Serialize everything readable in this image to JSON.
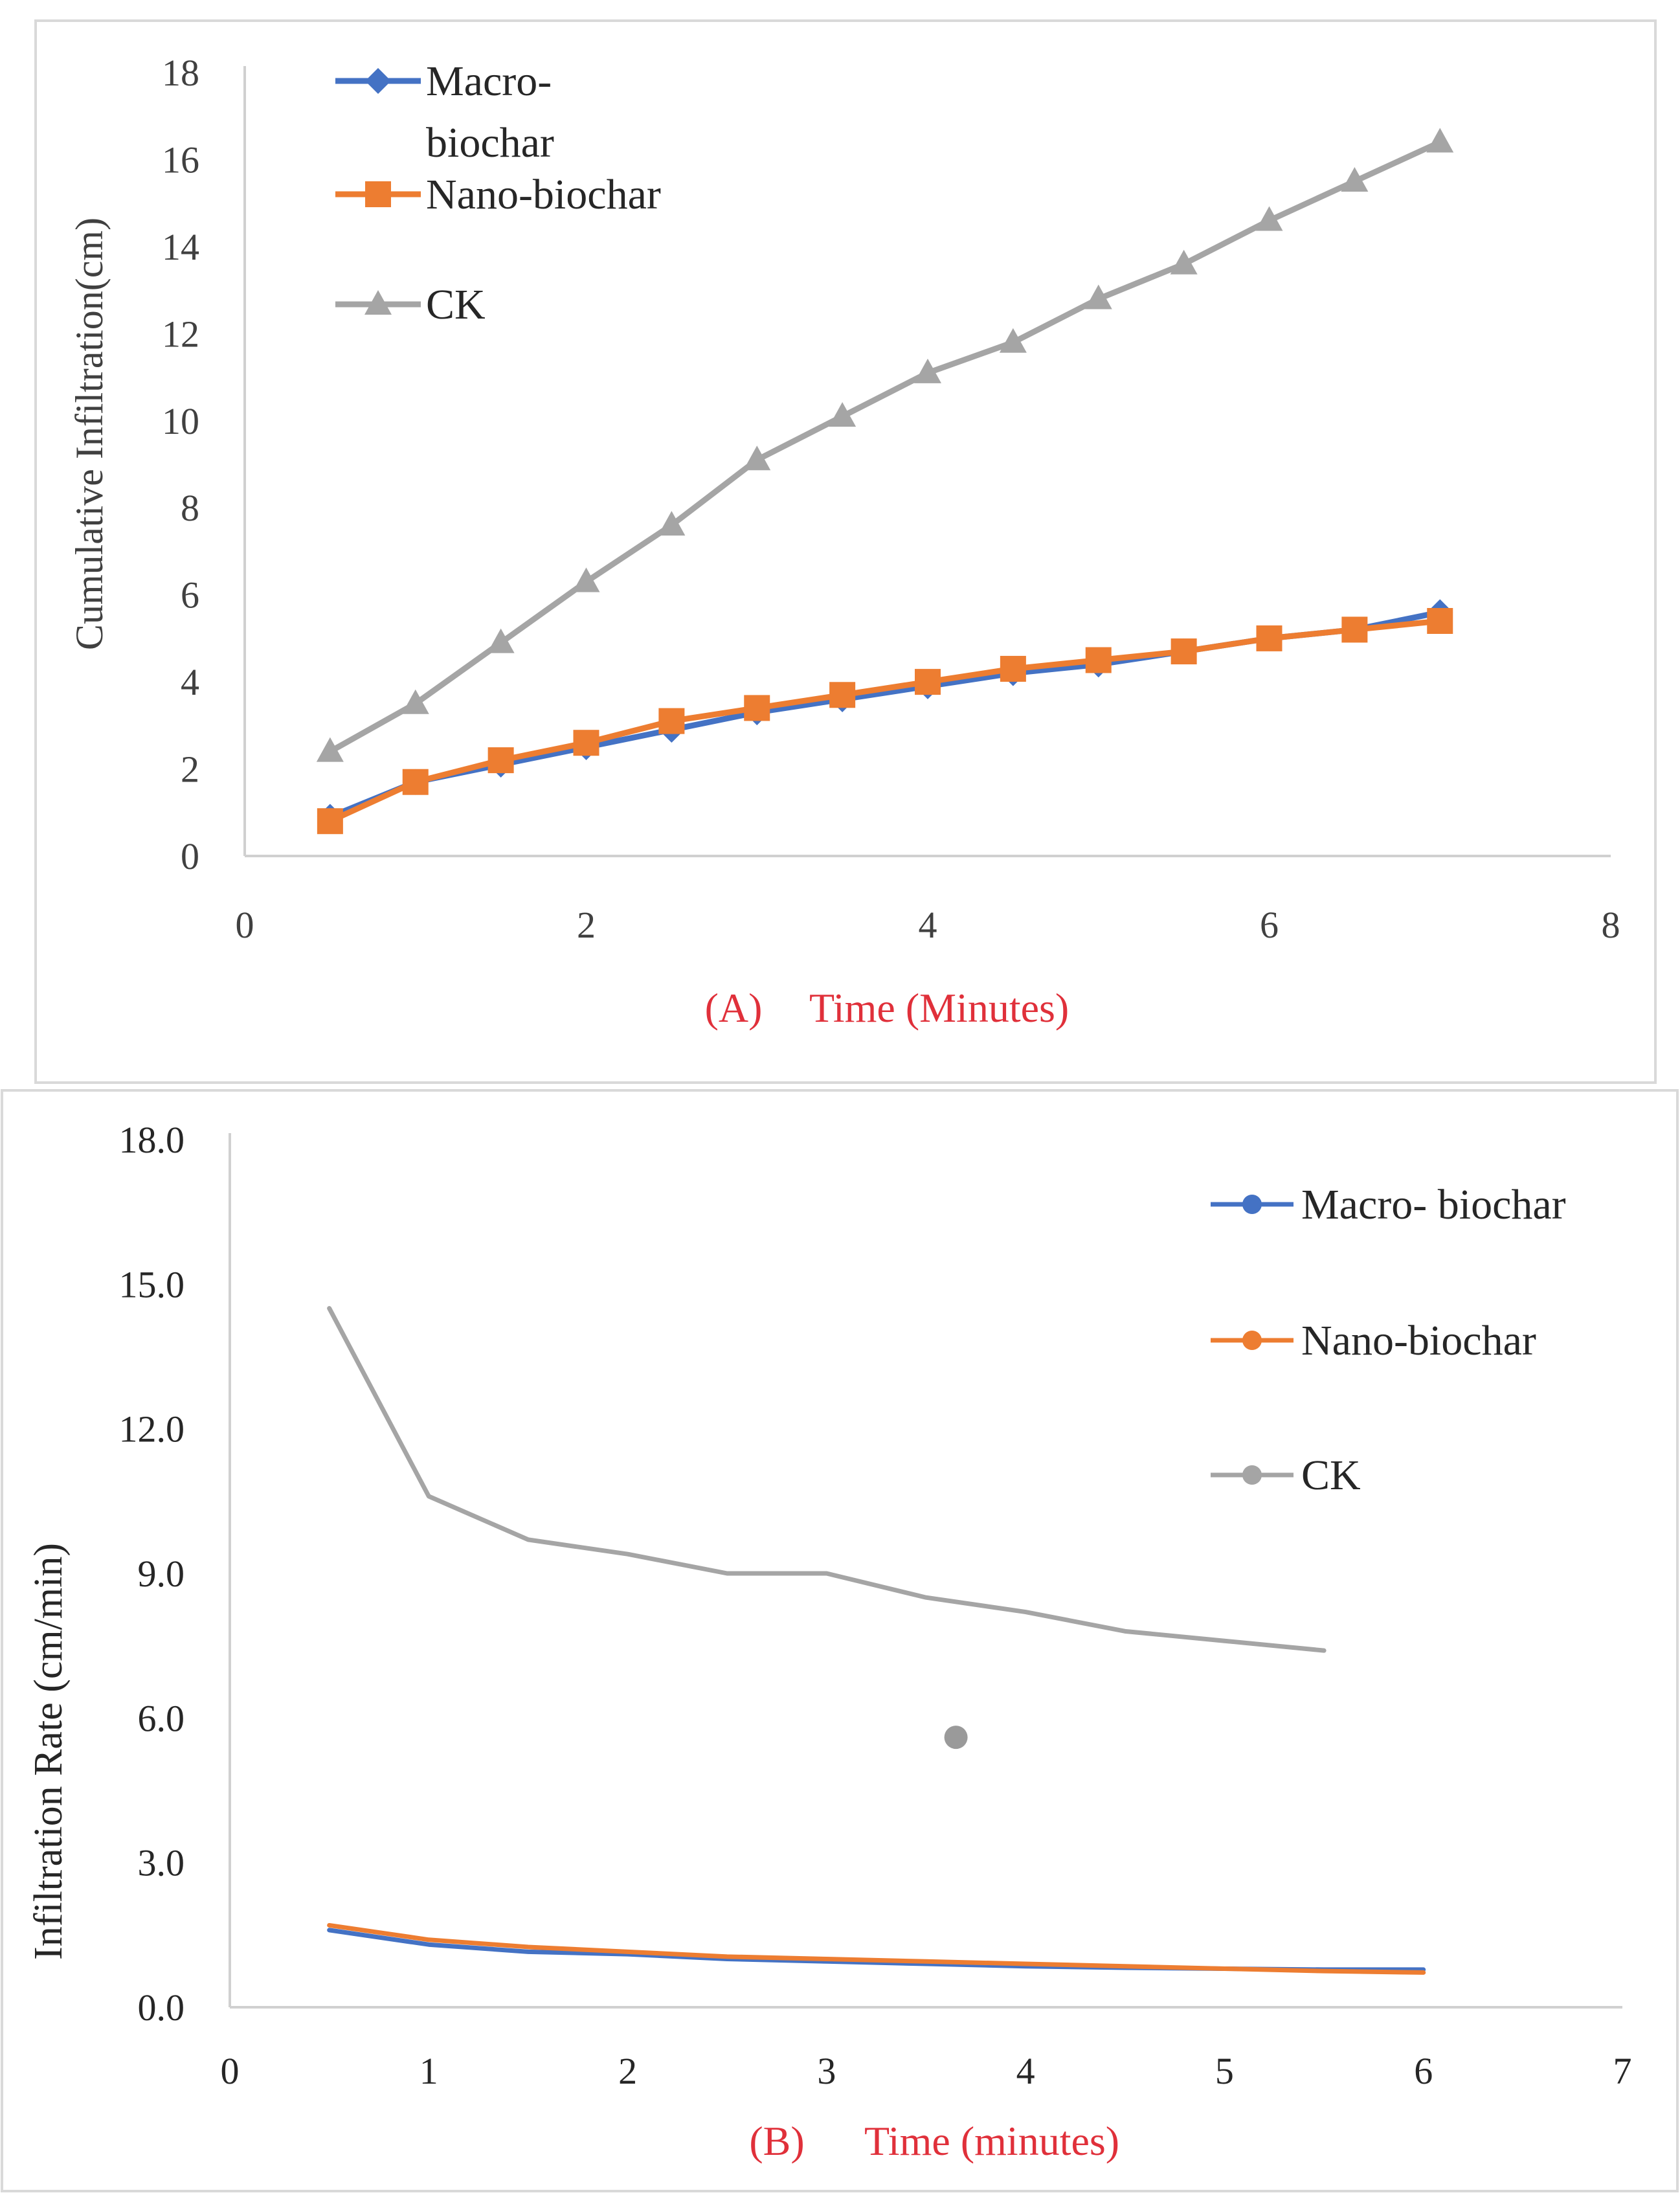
{
  "chart_data": [
    {
      "type": "line",
      "panel_label": "(A)",
      "title": "",
      "xlabel": "Time (Minutes)",
      "ylabel": "Cumulative Infiltration(cm)",
      "xlim": [
        0,
        8
      ],
      "ylim": [
        0,
        18
      ],
      "x_ticks": [
        0,
        2,
        4,
        6,
        8
      ],
      "y_ticks": [
        0,
        2,
        4,
        6,
        8,
        10,
        12,
        14,
        16,
        18
      ],
      "legend_position": "top-left",
      "grid": false,
      "x": [
        0.5,
        1,
        1.5,
        2,
        2.5,
        3,
        3.5,
        4,
        4.5,
        5,
        5.5,
        6,
        6.5,
        7
      ],
      "series": [
        {
          "name": "Macro-biochar",
          "legend_lines": [
            "Macro-",
            "biochar"
          ],
          "color": "#4472C4",
          "marker": "diamond",
          "values": [
            0.9,
            1.7,
            2.1,
            2.5,
            2.9,
            3.3,
            3.6,
            3.9,
            4.2,
            4.4,
            4.7,
            5.0,
            5.2,
            5.6
          ]
        },
        {
          "name": "Nano-biochar",
          "legend_lines": [
            "Nano-biochar"
          ],
          "color": "#ED7D31",
          "marker": "square",
          "values": [
            0.8,
            1.7,
            2.2,
            2.6,
            3.1,
            3.4,
            3.7,
            4.0,
            4.3,
            4.5,
            4.7,
            5.0,
            5.2,
            5.4
          ]
        },
        {
          "name": "CK",
          "legend_lines": [
            "CK"
          ],
          "color": "#A5A5A5",
          "marker": "triangle",
          "values": [
            2.4,
            3.5,
            4.9,
            6.3,
            7.6,
            9.1,
            10.1,
            11.1,
            11.8,
            12.8,
            13.6,
            14.6,
            15.5,
            16.4
          ]
        }
      ]
    },
    {
      "type": "line",
      "panel_label": "(B)",
      "title": "",
      "xlabel": "Time (minutes)",
      "ylabel": "Infiltration Rate (cm/min)",
      "xlim": [
        0,
        7
      ],
      "ylim": [
        0,
        18
      ],
      "x_ticks": [
        "0",
        "1",
        "2",
        "3",
        "4",
        "5",
        "6",
        "7"
      ],
      "y_ticks": [
        "0.0",
        "3.0",
        "6.0",
        "9.0",
        "12.0",
        "15.0",
        "18.0"
      ],
      "legend_position": "top-right",
      "grid": false,
      "series": [
        {
          "name": "Macro- biochar",
          "color": "#4472C4",
          "x": [
            0.5,
            1,
            1.5,
            2,
            2.5,
            3,
            3.5,
            4,
            4.5,
            5,
            5.5,
            6
          ],
          "values": [
            1.6,
            1.3,
            1.15,
            1.1,
            1.0,
            0.95,
            0.9,
            0.85,
            0.82,
            0.8,
            0.78,
            0.78
          ]
        },
        {
          "name": "Nano-biochar",
          "color": "#ED7D31",
          "x": [
            0.5,
            1,
            1.5,
            2,
            2.5,
            3,
            3.5,
            4,
            4.5,
            5,
            5.5,
            6
          ],
          "values": [
            1.7,
            1.4,
            1.25,
            1.15,
            1.05,
            1.0,
            0.95,
            0.9,
            0.85,
            0.8,
            0.75,
            0.72
          ]
        },
        {
          "name": "CK",
          "color": "#A5A5A5",
          "x": [
            0.5,
            1,
            1.5,
            2,
            2.5,
            3,
            3.5,
            4,
            4.5,
            5,
            5.5
          ],
          "values": [
            14.5,
            10.6,
            9.7,
            9.4,
            9.0,
            9.0,
            8.5,
            8.2,
            7.8,
            7.6,
            7.4
          ],
          "stray_point": {
            "x": 3.65,
            "y": 5.6
          }
        }
      ]
    }
  ]
}
